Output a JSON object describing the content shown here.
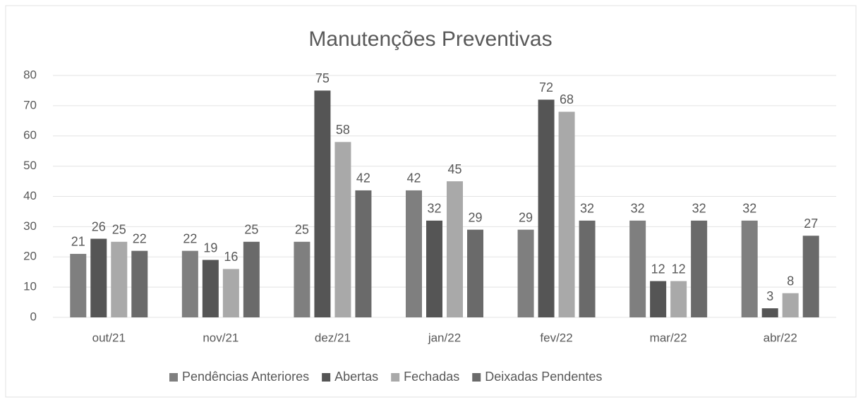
{
  "chart_data": {
    "type": "bar",
    "title": "Manutenções Preventivas",
    "categories": [
      "out/21",
      "nov/21",
      "dez/21",
      "jan/22",
      "fev/22",
      "mar/22",
      "abr/22"
    ],
    "series": [
      {
        "name": "Pendências Anteriores",
        "color": "#7f7f7f",
        "values": [
          21,
          22,
          25,
          42,
          29,
          32,
          32
        ]
      },
      {
        "name": "Abertas",
        "color": "#555555",
        "values": [
          26,
          19,
          75,
          32,
          72,
          12,
          3
        ]
      },
      {
        "name": "Fechadas",
        "color": "#a9a9a9",
        "values": [
          25,
          16,
          58,
          45,
          68,
          12,
          8
        ]
      },
      {
        "name": "Deixadas Pendentes",
        "color": "#6a6a6a",
        "values": [
          22,
          25,
          42,
          29,
          32,
          32,
          27
        ]
      }
    ],
    "ylim": [
      0,
      80
    ],
    "yticks": [
      0,
      10,
      20,
      30,
      40,
      50,
      60,
      70,
      80
    ],
    "grid": true,
    "legend": "bottom"
  }
}
